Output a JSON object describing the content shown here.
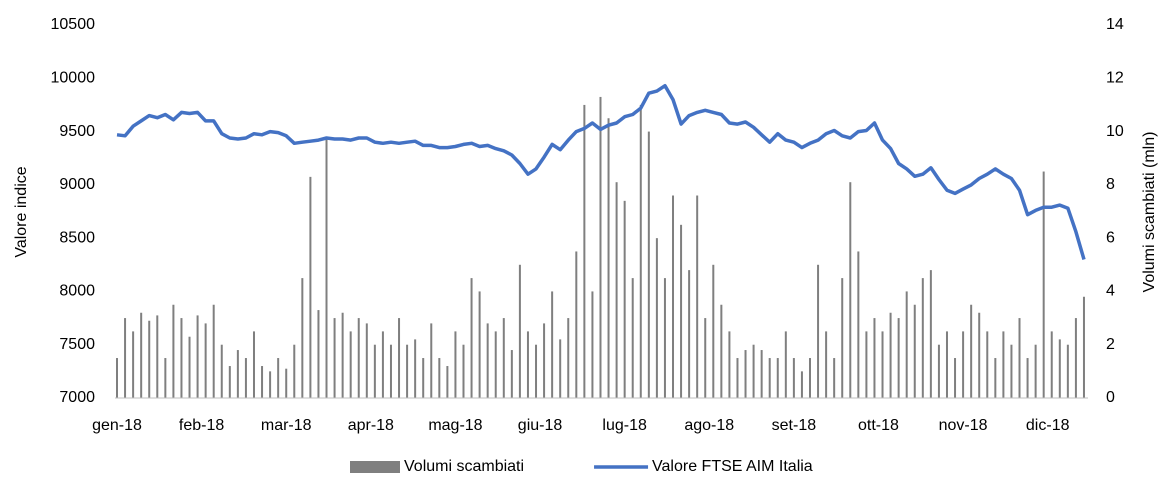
{
  "chart_data": {
    "type": "bar-line",
    "y_label": "Valore indice",
    "y2_label": "Volumi scambiati (mln)",
    "x": [
      0,
      1,
      2,
      3,
      4,
      5,
      6,
      7,
      8,
      9,
      10,
      11,
      12,
      13,
      14,
      15,
      16,
      17,
      18,
      19,
      20,
      21,
      22,
      23,
      24,
      25,
      26,
      27,
      28,
      29,
      30,
      31,
      32,
      33,
      34,
      35,
      36,
      37,
      38,
      39,
      40,
      41,
      42,
      43,
      44,
      45,
      46,
      47,
      48,
      49,
      50,
      51,
      52,
      53,
      54,
      55,
      56,
      57,
      58,
      59,
      60,
      61,
      62,
      63,
      64,
      65,
      66,
      67,
      68,
      69,
      70,
      71,
      72,
      73,
      74,
      75,
      76,
      77,
      78,
      79,
      80,
      81,
      82,
      83,
      84,
      85,
      86,
      87,
      88,
      89,
      90,
      91,
      92,
      93,
      94,
      95,
      96,
      97,
      98,
      99,
      100,
      101,
      102,
      103,
      104,
      105,
      106,
      107,
      108,
      109,
      110,
      111,
      112,
      113,
      114,
      115,
      116,
      117,
      118,
      119,
      120
    ],
    "xlim": [
      0,
      120.5
    ],
    "xticks": [
      {
        "value": 0,
        "label": "gen-18"
      },
      {
        "value": 10.5,
        "label": "feb-18"
      },
      {
        "value": 21,
        "label": "mar-18"
      },
      {
        "value": 31.5,
        "label": "apr-18"
      },
      {
        "value": 42,
        "label": "mag-18"
      },
      {
        "value": 52.5,
        "label": "giu-18"
      },
      {
        "value": 63,
        "label": "lug-18"
      },
      {
        "value": 73.5,
        "label": "ago-18"
      },
      {
        "value": 84,
        "label": "set-18"
      },
      {
        "value": 94.5,
        "label": "ott-18"
      },
      {
        "value": 105,
        "label": "nov-18"
      },
      {
        "value": 115.5,
        "label": "dic-18"
      }
    ],
    "ylim": [
      7000,
      10500
    ],
    "yticks": [
      7000,
      7500,
      8000,
      8500,
      9000,
      9500,
      10000,
      10500
    ],
    "y2lim": [
      0,
      14
    ],
    "y2ticks": [
      0,
      2,
      4,
      6,
      8,
      10,
      12,
      14
    ],
    "legend": "bottom",
    "series": [
      {
        "name": "Volumi scambiati",
        "type": "bar",
        "axis": "y2",
        "color": "#7f7f7f",
        "values": [
          1.5,
          3.0,
          2.5,
          3.2,
          2.9,
          3.1,
          1.5,
          3.5,
          3.0,
          2.3,
          3.1,
          2.8,
          3.5,
          2.0,
          1.2,
          1.8,
          1.5,
          2.5,
          1.2,
          1.0,
          1.5,
          1.1,
          2.0,
          4.5,
          8.3,
          3.3,
          9.7,
          3.0,
          3.2,
          2.5,
          3.0,
          2.8,
          2.0,
          2.5,
          2.0,
          3.0,
          2.0,
          2.2,
          1.5,
          2.8,
          1.5,
          1.2,
          2.5,
          2.0,
          4.5,
          4.0,
          2.8,
          2.5,
          3.0,
          1.8,
          5.0,
          2.5,
          2.0,
          2.8,
          4.0,
          2.2,
          3.0,
          5.5,
          11.0,
          4.0,
          11.3,
          10.5,
          8.1,
          7.4,
          4.5,
          11.0,
          10.0,
          6.0,
          4.5,
          7.6,
          6.5,
          4.8,
          7.6,
          3.0,
          5.0,
          3.5,
          2.5,
          1.5,
          1.8,
          2.0,
          1.8,
          1.5,
          1.5,
          2.5,
          1.5,
          1.0,
          1.5,
          5.0,
          2.5,
          1.5,
          4.5,
          8.1,
          5.5,
          2.5,
          3.0,
          2.5,
          3.2,
          3.0,
          4.0,
          3.5,
          4.5,
          4.8,
          2.0,
          2.5,
          1.5,
          2.5,
          3.5,
          3.2,
          2.5,
          1.5,
          2.5,
          2.0,
          3.0,
          1.5,
          2.0,
          8.5,
          2.5,
          2.2,
          2.0,
          3.0,
          3.8
        ]
      },
      {
        "name": "Valore FTSE AIM Italia",
        "type": "line",
        "axis": "y",
        "color": "#4472c4",
        "values": [
          9470,
          9460,
          9550,
          9600,
          9650,
          9630,
          9660,
          9610,
          9680,
          9670,
          9680,
          9600,
          9600,
          9480,
          9440,
          9430,
          9440,
          9480,
          9470,
          9500,
          9490,
          9460,
          9390,
          9400,
          9410,
          9420,
          9440,
          9430,
          9430,
          9420,
          9440,
          9440,
          9400,
          9390,
          9400,
          9390,
          9400,
          9410,
          9370,
          9370,
          9350,
          9350,
          9360,
          9380,
          9390,
          9360,
          9370,
          9340,
          9320,
          9280,
          9200,
          9100,
          9150,
          9260,
          9380,
          9330,
          9420,
          9500,
          9530,
          9580,
          9520,
          9560,
          9580,
          9640,
          9660,
          9720,
          9860,
          9880,
          9930,
          9800,
          9570,
          9650,
          9680,
          9700,
          9680,
          9660,
          9580,
          9570,
          9590,
          9540,
          9470,
          9400,
          9480,
          9420,
          9400,
          9350,
          9390,
          9420,
          9480,
          9510,
          9460,
          9440,
          9500,
          9510,
          9580,
          9420,
          9340,
          9200,
          9150,
          9080,
          9100,
          9160,
          9050,
          8950,
          8920,
          8960,
          9000,
          9060,
          9100,
          9150,
          9100,
          9060,
          8950,
          8720,
          8760,
          8790,
          8790,
          8810,
          8780,
          8560,
          8300
        ]
      }
    ]
  }
}
